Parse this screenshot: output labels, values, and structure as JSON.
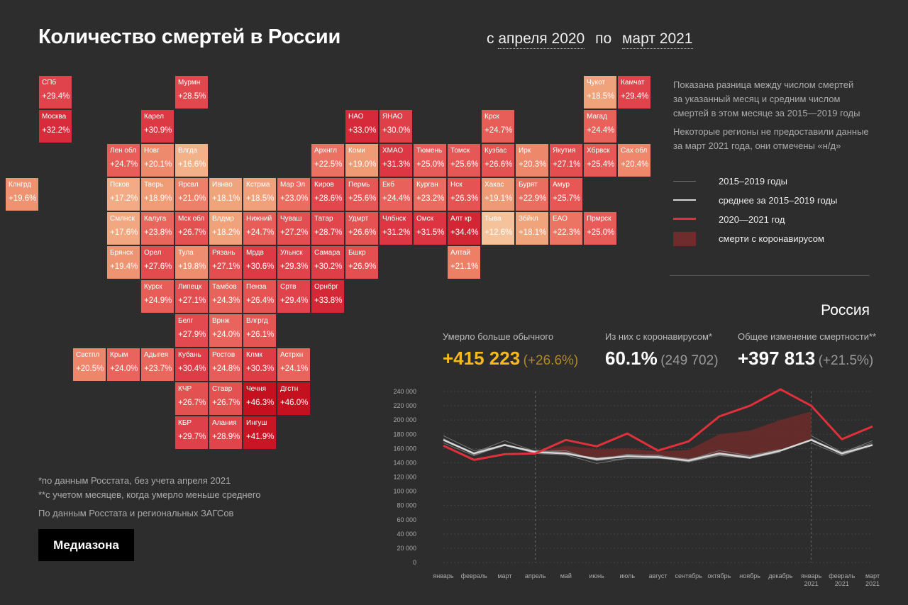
{
  "header": {
    "title": "Количество смертей в России",
    "period_prefix": "с",
    "period_from": "апреля 2020",
    "period_mid": "по",
    "period_to": "март 2021"
  },
  "notes": {
    "line1": "Показана разница между числом смертей",
    "line2": "за указанный месяц и средним числом",
    "line3": "смертей в этом месяце за 2015—2019 годы",
    "line4": "Некоторые регионы не предоставили данные",
    "line5": "за март 2021 года, они отмечены «н/д»"
  },
  "legend": {
    "items": [
      "2015–2019 годы",
      "среднее за 2015–2019 годы",
      "2020—2021 год",
      "смерти с коронавирусом"
    ],
    "colors": [
      "#777777",
      "#d6d6d6",
      "#e0303a",
      "#6e2c2c"
    ]
  },
  "summary": {
    "country": "Россия",
    "excess": {
      "label": "Умерло больше обычного",
      "value": "+415 223",
      "pct": "(+26.6%)"
    },
    "covid": {
      "label": "Из них с коронавирусом*",
      "value": "60.1%",
      "abs": "(249 702)"
    },
    "total": {
      "label": "Общее изменение смертности**",
      "value": "+397 813",
      "pct": "(+21.5%)"
    }
  },
  "footnotes": {
    "f1": "*по данным Росстата, без учета апреля 2021",
    "f2": "**с учетом месяцев, когда умерло меньше среднего",
    "source": "По данным Росстата и региональных ЗАГСов"
  },
  "brand": "Медиазона",
  "regions": [
    {
      "name": "СПб",
      "value": "+29.4%",
      "col": 0,
      "row": 0,
      "color": "#e0434b"
    },
    {
      "name": "Мурмн",
      "value": "+28.5%",
      "col": 4,
      "row": 0,
      "color": "#e2474d"
    },
    {
      "name": "Чукот",
      "value": "+18.5%",
      "col": 16,
      "row": 0,
      "color": "#f0a27b"
    },
    {
      "name": "Камчат",
      "value": "+29.4%",
      "col": 17,
      "row": 0,
      "color": "#e0434b"
    },
    {
      "name": "Москва",
      "value": "+32.2%",
      "col": 0,
      "row": 1,
      "color": "#d82c3c"
    },
    {
      "name": "Карел",
      "value": "+30.9%",
      "col": 3,
      "row": 1,
      "color": "#dd3944"
    },
    {
      "name": "НАО",
      "value": "+33.0%",
      "col": 9,
      "row": 1,
      "color": "#d62a3a"
    },
    {
      "name": "ЯНАО",
      "value": "+30.0%",
      "col": 10,
      "row": 1,
      "color": "#df3f48"
    },
    {
      "name": "Крск",
      "value": "+24.7%",
      "col": 13,
      "row": 1,
      "color": "#e75e59"
    },
    {
      "name": "Магад",
      "value": "+24.4%",
      "col": 16,
      "row": 1,
      "color": "#e8625b"
    },
    {
      "name": "Лен обл",
      "value": "+24.7%",
      "col": 2,
      "row": 2,
      "color": "#e75e59"
    },
    {
      "name": "Новг",
      "value": "+20.1%",
      "col": 3,
      "row": 2,
      "color": "#ee8a6c"
    },
    {
      "name": "Влгда",
      "value": "+16.6%",
      "col": 4,
      "row": 2,
      "color": "#f2b189"
    },
    {
      "name": "Архнгл",
      "value": "+22.5%",
      "col": 8,
      "row": 2,
      "color": "#eb7263"
    },
    {
      "name": "Коми",
      "value": "+19.0%",
      "col": 9,
      "row": 2,
      "color": "#ef9b76"
    },
    {
      "name": "ХМАО",
      "value": "+31.3%",
      "col": 10,
      "row": 2,
      "color": "#dc3742"
    },
    {
      "name": "Тюмень",
      "value": "+25.0%",
      "col": 11,
      "row": 2,
      "color": "#e75c58"
    },
    {
      "name": "Томск",
      "value": "+25.6%",
      "col": 12,
      "row": 2,
      "color": "#e65855"
    },
    {
      "name": "Кузбас",
      "value": "+26.6%",
      "col": 13,
      "row": 2,
      "color": "#e45252"
    },
    {
      "name": "Ирк",
      "value": "+20.3%",
      "col": 14,
      "row": 2,
      "color": "#ee886b"
    },
    {
      "name": "Якутия",
      "value": "+27.1%",
      "col": 15,
      "row": 2,
      "color": "#e34f50"
    },
    {
      "name": "Хбрвск",
      "value": "+25.4%",
      "col": 16,
      "row": 2,
      "color": "#e65957"
    },
    {
      "name": "Сах обл",
      "value": "+20.4%",
      "col": 17,
      "row": 2,
      "color": "#ee876b"
    },
    {
      "name": "Клнгрд",
      "value": "+19.6%",
      "col": -1,
      "row": 3,
      "color": "#ef9271"
    },
    {
      "name": "Псков",
      "value": "+17.2%",
      "col": 2,
      "row": 3,
      "color": "#f2ab84"
    },
    {
      "name": "Тверь",
      "value": "+18.9%",
      "col": 3,
      "row": 3,
      "color": "#ef9c77"
    },
    {
      "name": "Ярсвл",
      "value": "+21.0%",
      "col": 4,
      "row": 3,
      "color": "#ed8068"
    },
    {
      "name": "Ивнво",
      "value": "+18.1%",
      "col": 5,
      "row": 3,
      "color": "#f0a47c"
    },
    {
      "name": "Кстрма",
      "value": "+18.5%",
      "col": 6,
      "row": 3,
      "color": "#f0a07a"
    },
    {
      "name": "Мар Эл",
      "value": "+23.0%",
      "col": 7,
      "row": 3,
      "color": "#ea6d60"
    },
    {
      "name": "Киров",
      "value": "+28.6%",
      "col": 8,
      "row": 3,
      "color": "#e2474d"
    },
    {
      "name": "Пермь",
      "value": "+25.6%",
      "col": 9,
      "row": 3,
      "color": "#e65855"
    },
    {
      "name": "Екб",
      "value": "+24.4%",
      "col": 10,
      "row": 3,
      "color": "#e8625b"
    },
    {
      "name": "Курган",
      "value": "+23.2%",
      "col": 11,
      "row": 3,
      "color": "#ea6b5f"
    },
    {
      "name": "Нск",
      "value": "+26.3%",
      "col": 12,
      "row": 3,
      "color": "#e55453"
    },
    {
      "name": "Хакас",
      "value": "+19.1%",
      "col": 13,
      "row": 3,
      "color": "#ef9a76"
    },
    {
      "name": "Бурят",
      "value": "+22.9%",
      "col": 14,
      "row": 3,
      "color": "#ea6e60"
    },
    {
      "name": "Амур",
      "value": "+25.7%",
      "col": 15,
      "row": 3,
      "color": "#e65755"
    },
    {
      "name": "Смлнск",
      "value": "+17.6%",
      "col": 2,
      "row": 4,
      "color": "#f1a880"
    },
    {
      "name": "Калуга",
      "value": "+23.8%",
      "col": 3,
      "row": 4,
      "color": "#e9665d"
    },
    {
      "name": "Мск обл",
      "value": "+26.7%",
      "col": 4,
      "row": 4,
      "color": "#e45151"
    },
    {
      "name": "Влдмр",
      "value": "+18.2%",
      "col": 5,
      "row": 4,
      "color": "#f0a37b"
    },
    {
      "name": "Нижний",
      "value": "+24.7%",
      "col": 6,
      "row": 4,
      "color": "#e75e59"
    },
    {
      "name": "Чуваш",
      "value": "+27.2%",
      "col": 7,
      "row": 4,
      "color": "#e34f50"
    },
    {
      "name": "Татар",
      "value": "+28.7%",
      "col": 8,
      "row": 4,
      "color": "#e2464d"
    },
    {
      "name": "Удмрт",
      "value": "+26.6%",
      "col": 9,
      "row": 4,
      "color": "#e45252"
    },
    {
      "name": "Члбнск",
      "value": "+31.2%",
      "col": 10,
      "row": 4,
      "color": "#dc3742"
    },
    {
      "name": "Омск",
      "value": "+31.5%",
      "col": 11,
      "row": 4,
      "color": "#dc3541"
    },
    {
      "name": "Алт кр",
      "value": "+34.4%",
      "col": 12,
      "row": 4,
      "color": "#d32635"
    },
    {
      "name": "Тыва",
      "value": "+12.6%",
      "col": 13,
      "row": 4,
      "color": "#f4c39b"
    },
    {
      "name": "Збйкл",
      "value": "+18.1%",
      "col": 14,
      "row": 4,
      "color": "#f0a47c"
    },
    {
      "name": "ЕАО",
      "value": "+22.3%",
      "col": 15,
      "row": 4,
      "color": "#eb7463"
    },
    {
      "name": "Прмрск",
      "value": "+25.0%",
      "col": 16,
      "row": 4,
      "color": "#e75c58"
    },
    {
      "name": "Брянск",
      "value": "+19.4%",
      "col": 2,
      "row": 5,
      "color": "#ef9473"
    },
    {
      "name": "Орел",
      "value": "+27.6%",
      "col": 3,
      "row": 5,
      "color": "#e34c4f"
    },
    {
      "name": "Тула",
      "value": "+19.8%",
      "col": 4,
      "row": 5,
      "color": "#ee8e6f"
    },
    {
      "name": "Рязань",
      "value": "+27.1%",
      "col": 5,
      "row": 5,
      "color": "#e34f50"
    },
    {
      "name": "Мрдв",
      "value": "+30.6%",
      "col": 6,
      "row": 5,
      "color": "#dd3a45"
    },
    {
      "name": "Ульнск",
      "value": "+29.3%",
      "col": 7,
      "row": 5,
      "color": "#e0434b"
    },
    {
      "name": "Самара",
      "value": "+30.2%",
      "col": 8,
      "row": 5,
      "color": "#de3e47"
    },
    {
      "name": "Бшкр",
      "value": "+26.9%",
      "col": 9,
      "row": 5,
      "color": "#e45051"
    },
    {
      "name": "Алтай",
      "value": "+21.1%",
      "col": 12,
      "row": 5,
      "color": "#ed7f67"
    },
    {
      "name": "Курск",
      "value": "+24.9%",
      "col": 3,
      "row": 6,
      "color": "#e75d58"
    },
    {
      "name": "Липецк",
      "value": "+27.1%",
      "col": 4,
      "row": 6,
      "color": "#e34f50"
    },
    {
      "name": "Тамбов",
      "value": "+24.3%",
      "col": 5,
      "row": 6,
      "color": "#e8635b"
    },
    {
      "name": "Пенза",
      "value": "+26.4%",
      "col": 6,
      "row": 6,
      "color": "#e55453"
    },
    {
      "name": "Сртв",
      "value": "+29.4%",
      "col": 7,
      "row": 6,
      "color": "#e0434b"
    },
    {
      "name": "Орнбрг",
      "value": "+33.8%",
      "col": 8,
      "row": 6,
      "color": "#d42837"
    },
    {
      "name": "Белг",
      "value": "+27.9%",
      "col": 4,
      "row": 7,
      "color": "#e34a4f"
    },
    {
      "name": "Врнж",
      "value": "+24.0%",
      "col": 5,
      "row": 7,
      "color": "#e9645c"
    },
    {
      "name": "Влгргд",
      "value": "+26.1%",
      "col": 6,
      "row": 7,
      "color": "#e55554"
    },
    {
      "name": "Свстпл",
      "value": "+20.5%",
      "col": 1,
      "row": 8,
      "color": "#ee866b"
    },
    {
      "name": "Крым",
      "value": "+24.0%",
      "col": 2,
      "row": 8,
      "color": "#e9645c"
    },
    {
      "name": "Адыгея",
      "value": "+23.7%",
      "col": 3,
      "row": 8,
      "color": "#e9675d"
    },
    {
      "name": "Кубань",
      "value": "+30.4%",
      "col": 4,
      "row": 8,
      "color": "#de3c46"
    },
    {
      "name": "Ростов",
      "value": "+24.8%",
      "col": 5,
      "row": 8,
      "color": "#e75d59"
    },
    {
      "name": "Клмк",
      "value": "+30.3%",
      "col": 6,
      "row": 8,
      "color": "#de3d46"
    },
    {
      "name": "Астрхн",
      "value": "+24.1%",
      "col": 7,
      "row": 8,
      "color": "#e8645c"
    },
    {
      "name": "КЧР",
      "value": "+26.7%",
      "col": 4,
      "row": 9,
      "color": "#e45151"
    },
    {
      "name": "Ставр",
      "value": "+26.7%",
      "col": 5,
      "row": 9,
      "color": "#e45151"
    },
    {
      "name": "Чечня",
      "value": "+46.3%",
      "col": 6,
      "row": 9,
      "color": "#c4101f"
    },
    {
      "name": "Дгстн",
      "value": "+46.0%",
      "col": 7,
      "row": 9,
      "color": "#c4101f"
    },
    {
      "name": "КБР",
      "value": "+29.7%",
      "col": 4,
      "row": 10,
      "color": "#df414a"
    },
    {
      "name": "Алания",
      "value": "+28.9%",
      "col": 5,
      "row": 10,
      "color": "#e1454c"
    },
    {
      "name": "Ингуш",
      "value": "+41.9%",
      "col": 6,
      "row": 10,
      "color": "#c91625"
    }
  ],
  "chart_data": {
    "type": "line",
    "categories": [
      "январь",
      "февраль",
      "март",
      "апрель",
      "май",
      "июнь",
      "июль",
      "август",
      "сентябрь",
      "октябрь",
      "ноябрь",
      "декабрь",
      "январь 2021",
      "февраль 2021",
      "март 2021"
    ],
    "ylim": [
      0,
      240000
    ],
    "yticks": [
      0,
      20000,
      40000,
      60000,
      80000,
      100000,
      120000,
      140000,
      160000,
      180000,
      200000,
      220000,
      240000
    ],
    "ytick_labels": [
      "0",
      "20 000",
      "40 000",
      "60 000",
      "80 000",
      "100 000",
      "120 000",
      "140 000",
      "160 000",
      "180 000",
      "200 000",
      "220 000",
      "240 000"
    ],
    "series": [
      {
        "name": "2015",
        "kind": "past",
        "values": [
          null,
          null,
          null,
          158000,
          152000,
          147000,
          150000,
          149000,
          143000,
          152000,
          146000,
          155000,
          null,
          null,
          null
        ]
      },
      {
        "name": "2016",
        "kind": "past",
        "values": [
          178000,
          157000,
          164000,
          154000,
          153000,
          143000,
          151000,
          151000,
          142000,
          151000,
          147000,
          158000,
          null,
          null,
          null
        ]
      },
      {
        "name": "2017",
        "kind": "past",
        "values": [
          168000,
          150000,
          165000,
          153000,
          151000,
          139000,
          146000,
          147000,
          141000,
          150000,
          146000,
          157000,
          null,
          null,
          null
        ]
      },
      {
        "name": "2018",
        "kind": "past",
        "values": [
          173000,
          154000,
          171000,
          156000,
          157000,
          143000,
          146000,
          146000,
          144000,
          157000,
          150000,
          159000,
          null,
          null,
          null
        ]
      },
      {
        "name": "2019",
        "kind": "past",
        "values": [
          174000,
          151000,
          164000,
          157000,
          155000,
          144000,
          152000,
          150000,
          145000,
          154000,
          149000,
          158000,
          null,
          null,
          null
        ]
      },
      {
        "name": "2016–2020",
        "kind": "past",
        "values": [
          null,
          null,
          null,
          null,
          null,
          null,
          null,
          null,
          null,
          null,
          null,
          null,
          178000,
          155000,
          168000
        ]
      },
      {
        "name": "2017–2021",
        "kind": "past",
        "values": [
          null,
          null,
          null,
          null,
          null,
          null,
          null,
          null,
          null,
          null,
          null,
          null,
          168000,
          150000,
          165000
        ]
      },
      {
        "name": "2018–2022",
        "kind": "past",
        "values": [
          null,
          null,
          null,
          null,
          null,
          null,
          null,
          null,
          null,
          null,
          null,
          null,
          173000,
          154000,
          171000
        ]
      },
      {
        "name": "2019–2023",
        "kind": "past",
        "values": [
          null,
          null,
          null,
          null,
          null,
          null,
          null,
          null,
          null,
          null,
          null,
          null,
          174000,
          151000,
          164000
        ]
      },
      {
        "name": "среднее за 2015–2019 годы",
        "kind": "avg",
        "values": [
          172000,
          153000,
          165000,
          155000,
          153000,
          145000,
          149000,
          148000,
          143000,
          153000,
          147000,
          157000,
          172000,
          153000,
          165000
        ]
      },
      {
        "name": "2020—2021 год",
        "kind": "current",
        "values": [
          164000,
          144000,
          152000,
          153000,
          172000,
          163000,
          181000,
          157000,
          170000,
          205000,
          220000,
          243000,
          220000,
          173000,
          191000
        ]
      },
      {
        "name": "смерти с коронавирусом",
        "kind": "covid",
        "values": [
          null,
          null,
          null,
          154000,
          164000,
          159000,
          160000,
          156000,
          158000,
          180000,
          185000,
          200000,
          212000,
          null,
          null
        ]
      }
    ]
  }
}
